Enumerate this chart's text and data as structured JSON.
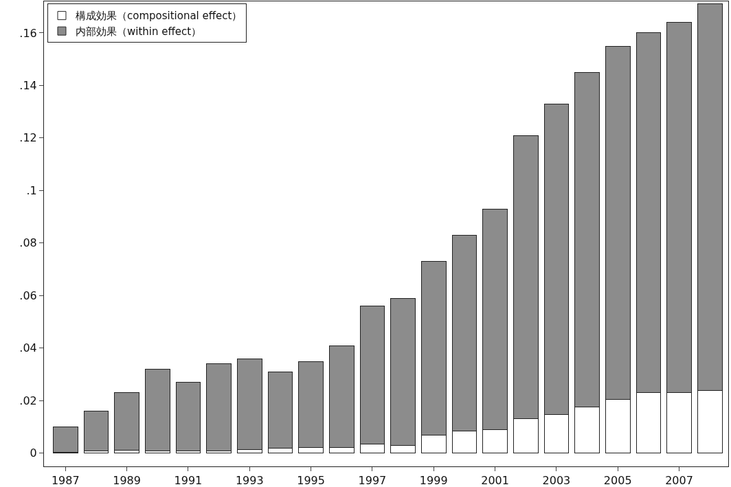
{
  "chart_data": {
    "type": "bar",
    "stacked": true,
    "x": [
      1987,
      1988,
      1989,
      1990,
      1991,
      1992,
      1993,
      1994,
      1995,
      1996,
      1997,
      1998,
      1999,
      2000,
      2001,
      2002,
      2003,
      2004,
      2005,
      2006,
      2007,
      2008
    ],
    "series": [
      {
        "name": "構成効果（compositional effect）",
        "color": "#ffffff",
        "values": [
          0.0003,
          0.001,
          0.0012,
          0.001,
          0.001,
          0.001,
          0.0015,
          0.002,
          0.0022,
          0.0022,
          0.0035,
          0.003,
          0.0068,
          0.0085,
          0.009,
          0.0133,
          0.0148,
          0.0175,
          0.0205,
          0.023,
          0.023,
          0.0238
        ]
      },
      {
        "name": "内部効果（within effect）",
        "color": "#8c8c8c",
        "values": [
          0.0097,
          0.015,
          0.0218,
          0.031,
          0.026,
          0.033,
          0.0345,
          0.029,
          0.0328,
          0.0388,
          0.0525,
          0.056,
          0.0662,
          0.0745,
          0.084,
          0.1077,
          0.1182,
          0.1275,
          0.1345,
          0.137,
          0.141,
          0.1472
        ]
      }
    ],
    "xlim": [
      1986.3,
      2008.6
    ],
    "xticks": [
      1987,
      1989,
      1991,
      1993,
      1995,
      1997,
      1999,
      2001,
      2003,
      2005,
      2007
    ],
    "ylim": [
      -0.005,
      0.172
    ],
    "yticks": [
      0,
      {
        "value": 0.02,
        "label": ".02"
      },
      {
        "value": 0.04,
        "label": ".04"
      },
      {
        "value": 0.06,
        "label": ".06"
      },
      {
        "value": 0.08,
        "label": ".08"
      },
      {
        "value": 0.1,
        "label": ".1"
      },
      {
        "value": 0.12,
        "label": ".12"
      },
      {
        "value": 0.14,
        "label": ".14"
      },
      {
        "value": 0.16,
        "label": ".16"
      }
    ],
    "grid": false,
    "legend": "top left"
  }
}
